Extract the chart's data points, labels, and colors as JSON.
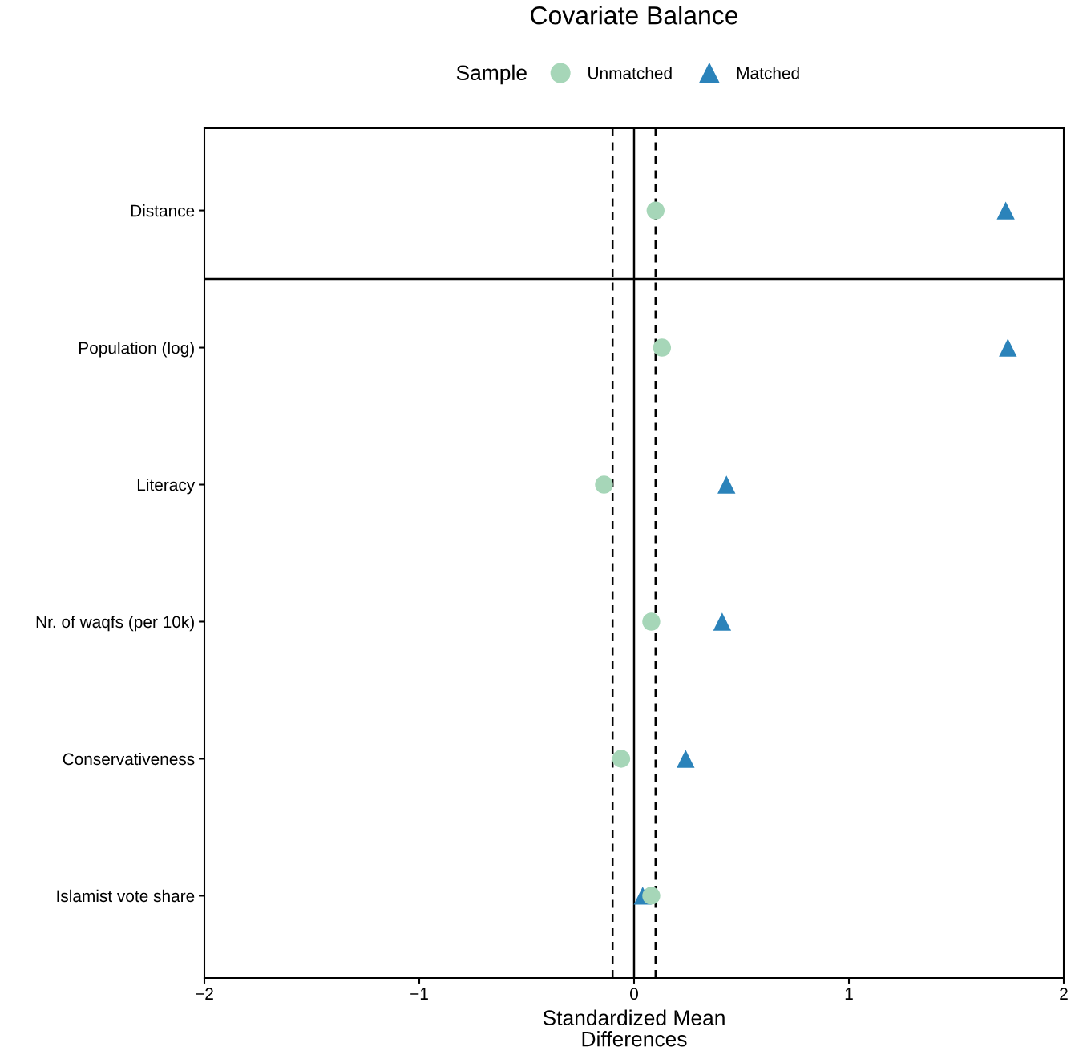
{
  "chart_data": {
    "type": "scatter",
    "title": "Covariate Balance",
    "xlabel": "Standardized Mean\nDifferences",
    "legend_title": "Sample",
    "legend": "top",
    "orientation": "horizontal",
    "categories": [
      "Distance",
      "Population (log)",
      "Literacy",
      "Nr. of waqfs (per 10k)",
      "Conservativeness",
      "Islamist vote share"
    ],
    "series": [
      {
        "name": "Unmatched",
        "color": "#a6d6b8",
        "marker": "circle",
        "values": [
          0.1,
          0.13,
          -0.14,
          0.08,
          -0.06,
          0.08
        ]
      },
      {
        "name": "Matched",
        "color": "#2b83ba",
        "marker": "triangle",
        "values": [
          1.73,
          1.74,
          0.43,
          0.41,
          0.24,
          0.04
        ]
      }
    ],
    "xlim": [
      -2,
      2
    ],
    "xticks": [
      -2,
      -1,
      0,
      1,
      2
    ],
    "ref_lines": [
      {
        "axis": "x",
        "value": 0,
        "line_style": "solid"
      },
      {
        "axis": "x",
        "value": -0.1,
        "line_style": "dashed"
      },
      {
        "axis": "x",
        "value": 0.1,
        "line_style": "dashed"
      }
    ],
    "grid": false
  }
}
